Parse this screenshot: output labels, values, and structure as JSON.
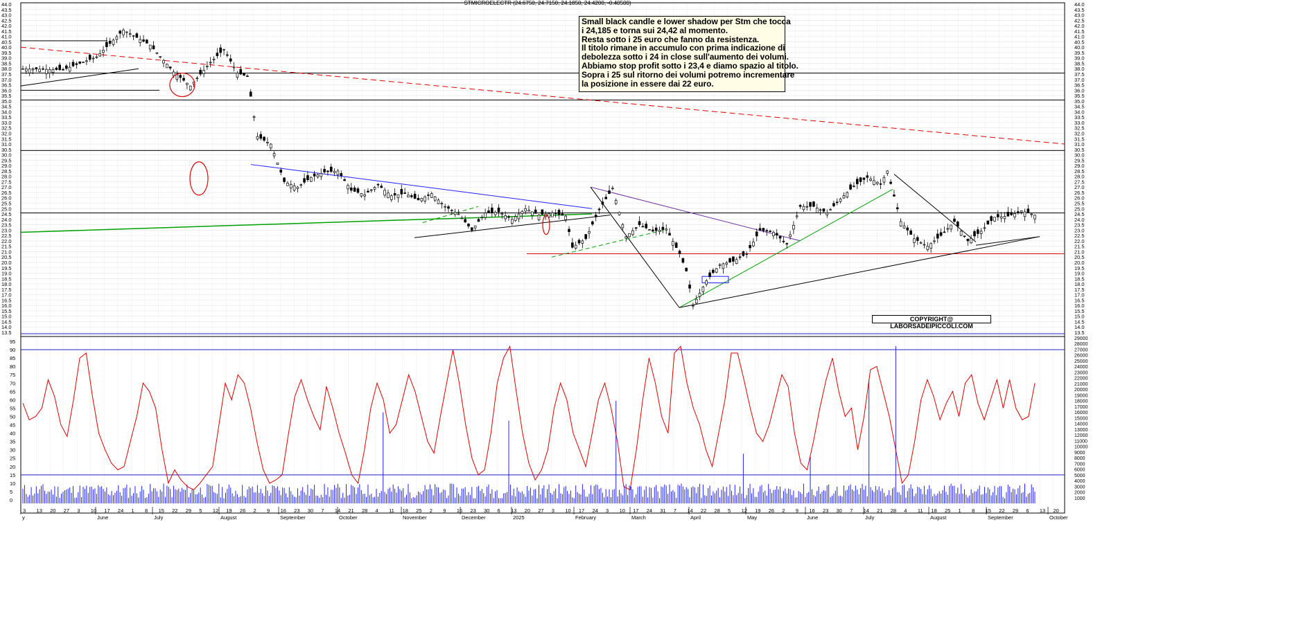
{
  "chart_data": [
    {
      "type": "candlestick",
      "title": "STMICROELECTR (24.6750, 24.7150, 24.1850, 24.4200, -0.40500)",
      "ylim": [
        13.5,
        44.0
      ],
      "y_ticks": [
        "13.5",
        "14.0",
        "14.5",
        "15.0",
        "15.5",
        "16.0",
        "16.5",
        "17.0",
        "17.5",
        "18.0",
        "18.5",
        "19.0",
        "19.5",
        "20.0",
        "20.5",
        "21.0",
        "21.5",
        "22.0",
        "22.5",
        "23.0",
        "23.5",
        "24.0",
        "24.5",
        "25.0",
        "25.5",
        "26.0",
        "26.5",
        "27.0",
        "27.5",
        "28.0",
        "28.5",
        "29.0",
        "29.5",
        "30.0",
        "30.5",
        "31.0",
        "31.5",
        "32.0",
        "32.5",
        "33.0",
        "33.5",
        "34.0",
        "34.5",
        "35.0",
        "35.5",
        "36.0",
        "36.5",
        "37.0",
        "37.5",
        "38.0",
        "38.5",
        "39.0",
        "39.5",
        "40.0",
        "40.5",
        "41.0",
        "41.5",
        "42.0",
        "42.5",
        "43.0",
        "43.5",
        "44.0"
      ],
      "day_ticks": [
        "3",
        "13",
        "20",
        "27",
        "3",
        "10",
        "17",
        "24",
        "1",
        "8",
        "15",
        "22",
        "29",
        "5",
        "12",
        "19",
        "26",
        "2",
        "9",
        "16",
        "23",
        "30",
        "7",
        "14",
        "21",
        "28",
        "4",
        "11",
        "18",
        "25",
        "2",
        "9",
        "16",
        "23",
        "30",
        "6",
        "13",
        "20",
        "27",
        "3",
        "10",
        "17",
        "24",
        "3",
        "10",
        "17",
        "24",
        "31",
        "7",
        "14",
        "22",
        "28",
        "5",
        "12",
        "19",
        "26",
        "2",
        "9",
        "16",
        "23",
        "30",
        "7",
        "14",
        "21",
        "28",
        "4",
        "11",
        "18",
        "25",
        "1",
        "8",
        "15",
        "22",
        "29",
        "6",
        "13",
        "20"
      ],
      "month_labels": [
        "y",
        "June",
        "July",
        "August",
        "September",
        "October",
        "November",
        "December",
        "2025",
        "February",
        "March",
        "April",
        "May",
        "June",
        "July",
        "August",
        "September",
        "October"
      ],
      "annotation": [
        "Small black candle e lower shadow per Stm che tocca",
        "i 24,185 e torna sui 24,42 al momento.",
        "Resta sotto i 25 euro che fanno da resistenza.",
        "Il titolo rimane in accumulo con prima indicazione di",
        "debolezza sotto i 24 in close sull'aumento dei volumi.",
        "Abbiamo stop profit sotto i 23,4 e diamo spazio al titolo.",
        "Sopra i 25 sul ritorno dei volumi potremo incrementare",
        "la posizione in essere dai 22 euro."
      ],
      "copyright": "COPYRIGHT@ LABORSADEIPICCOLI.COM",
      "horizontal_levels": [
        40.6,
        37.6,
        36.0,
        35.1,
        30.4,
        24.6,
        20.8
      ],
      "price_path": [
        [
          0,
          38.0
        ],
        [
          12,
          37.9
        ],
        [
          22,
          39.1
        ],
        [
          30,
          41.6
        ],
        [
          38,
          40.2
        ],
        [
          45,
          37.7
        ],
        [
          50,
          36.4
        ],
        [
          56,
          38.6
        ],
        [
          60,
          39.8
        ],
        [
          64,
          37.6
        ],
        [
          67,
          37.3
        ],
        [
          70,
          31.7
        ],
        [
          74,
          31.0
        ],
        [
          78,
          27.5
        ],
        [
          82,
          27.0
        ],
        [
          86,
          27.9
        ],
        [
          90,
          28.4
        ],
        [
          94,
          28.5
        ],
        [
          98,
          26.7
        ],
        [
          102,
          26.3
        ],
        [
          106,
          27.2
        ],
        [
          110,
          26.2
        ],
        [
          114,
          26.4
        ],
        [
          118,
          25.8
        ],
        [
          122,
          26.4
        ],
        [
          126,
          25.2
        ],
        [
          130,
          24.5
        ],
        [
          134,
          23.0
        ],
        [
          138,
          24.6
        ],
        [
          142,
          24.7
        ],
        [
          146,
          24.0
        ],
        [
          150,
          25.0
        ],
        [
          154,
          24.4
        ],
        [
          158,
          24.6
        ],
        [
          162,
          24.3
        ],
        [
          164,
          21.4
        ],
        [
          168,
          22.2
        ],
        [
          172,
          24.9
        ],
        [
          176,
          26.9
        ],
        [
          180,
          22.4
        ],
        [
          184,
          23.5
        ],
        [
          188,
          22.9
        ],
        [
          192,
          23.1
        ],
        [
          196,
          20.8
        ],
        [
          198,
          19.2
        ],
        [
          200,
          16.0
        ],
        [
          204,
          18.3
        ],
        [
          208,
          19.8
        ],
        [
          212,
          20.1
        ],
        [
          216,
          20.8
        ],
        [
          220,
          23.0
        ],
        [
          224,
          22.8
        ],
        [
          228,
          21.7
        ],
        [
          232,
          25.2
        ],
        [
          236,
          25.2
        ],
        [
          240,
          24.6
        ],
        [
          244,
          25.9
        ],
        [
          248,
          27.1
        ],
        [
          252,
          27.9
        ],
        [
          256,
          27.3
        ],
        [
          258,
          28.5
        ],
        [
          262,
          23.8
        ],
        [
          266,
          22.2
        ],
        [
          270,
          21.5
        ],
        [
          274,
          22.5
        ],
        [
          278,
          23.8
        ],
        [
          282,
          22.0
        ],
        [
          286,
          22.9
        ],
        [
          290,
          24.2
        ],
        [
          294,
          24.3
        ],
        [
          298,
          24.8
        ],
        [
          302,
          24.4
        ]
      ],
      "volume_max": 29000,
      "volume_ticks": [
        "1000",
        "2000",
        "3000",
        "4000",
        "5000",
        "6000",
        "7000",
        "8000",
        "9000",
        "10000",
        "11000",
        "12000",
        "13000",
        "14000",
        "15000",
        "16000",
        "17000",
        "18000",
        "19000",
        "20000",
        "21000",
        "22000",
        "23000",
        "24000",
        "25000",
        "26000",
        "27000",
        "28000",
        "29000"
      ],
      "oscillator_ticks": [
        "0",
        "5",
        "10",
        "15",
        "20",
        "25",
        "30",
        "35",
        "40",
        "45",
        "50",
        "55",
        "60",
        "65",
        "70",
        "75",
        "80",
        "85",
        "90",
        "95"
      ],
      "oscillator_levels": [
        15,
        90
      ],
      "oscillator": [
        58,
        48,
        50,
        55,
        72,
        62,
        45,
        38,
        60,
        85,
        88,
        62,
        40,
        30,
        22,
        18,
        20,
        35,
        50,
        70,
        65,
        55,
        30,
        10,
        18,
        12,
        8,
        6,
        10,
        15,
        20,
        45,
        70,
        60,
        75,
        70,
        55,
        35,
        18,
        10,
        12,
        15,
        40,
        62,
        72,
        60,
        50,
        42,
        68,
        55,
        40,
        28,
        15,
        10,
        30,
        55,
        70,
        60,
        40,
        45,
        60,
        75,
        65,
        50,
        35,
        28,
        50,
        70,
        90,
        70,
        45,
        25,
        15,
        18,
        40,
        70,
        85,
        92,
        65,
        40,
        22,
        12,
        18,
        30,
        55,
        70,
        60,
        40,
        30,
        20,
        40,
        60,
        70,
        55,
        35,
        8,
        6,
        30,
        60,
        85,
        70,
        50,
        40,
        88,
        92,
        70,
        55,
        45,
        30,
        20,
        40,
        60,
        88,
        88,
        72,
        55,
        40,
        35,
        45,
        60,
        75,
        68,
        40,
        22,
        18,
        35,
        55,
        72,
        85,
        65,
        50,
        55,
        30,
        50,
        78,
        80,
        65,
        50,
        30,
        10,
        15,
        35,
        60,
        72,
        62,
        48,
        58,
        65,
        50,
        70,
        75,
        58,
        48,
        60,
        72,
        55,
        72,
        55,
        48,
        50,
        70
      ]
    }
  ]
}
